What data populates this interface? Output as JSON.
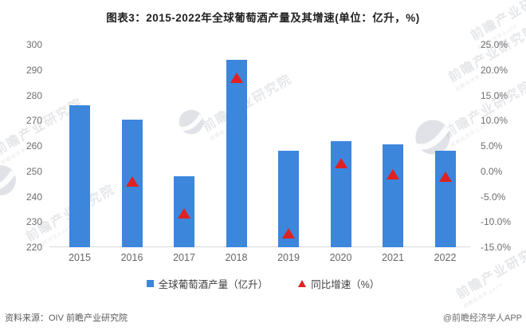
{
  "title": "图表3：2015-2022年全球葡萄酒产量及其增速(单位：亿升，%)",
  "chart_data": {
    "type": "bar",
    "title": "图表3：2015-2022年全球葡萄酒产量及其增速(单位：亿升，%)",
    "categories": [
      "2015",
      "2016",
      "2017",
      "2018",
      "2019",
      "2020",
      "2021",
      "2022"
    ],
    "series": [
      {
        "name": "全球葡萄酒产量（亿升）",
        "type": "bar",
        "axis": "left",
        "color": "#3c86dc",
        "values": [
          276,
          270.5,
          248,
          294,
          258,
          262,
          260.5,
          258
        ]
      },
      {
        "name": "同比增速（%）",
        "type": "scatter",
        "marker": "triangle",
        "axis": "right",
        "color": "#e02121",
        "values": [
          null,
          -2.0,
          -8.3,
          18.5,
          -12.2,
          1.6,
          -0.6,
          -1.0
        ]
      }
    ],
    "left_axis": {
      "label": "亿升",
      "min": 220,
      "max": 300,
      "step": 10,
      "ticks": [
        "300",
        "290",
        "280",
        "270",
        "260",
        "250",
        "240",
        "230",
        "220"
      ]
    },
    "right_axis": {
      "label": "%",
      "min": -15,
      "max": 25,
      "step": 5,
      "ticks": [
        "25.0%",
        "20.0%",
        "15.0%",
        "10.0%",
        "5.0%",
        "0.0%",
        "-5.0%",
        "-10.0%",
        "-15.0%"
      ]
    },
    "grid": false,
    "legend_position": "bottom"
  },
  "legend": {
    "production_label": "全球葡萄酒产量（亿升）",
    "growth_label": "同比增速（%）"
  },
  "footer": {
    "source": "资料来源：OIV 前瞻产业研究院",
    "credit": "@前瞻经济学人APP"
  },
  "watermark": {
    "text": "前瞻产业研究院",
    "subtext": "前瞻经济学人APP",
    "logo_name": "qianzhan-logo"
  },
  "colors": {
    "bar": "#3c86dc",
    "marker": "#e02121",
    "axis_text": "#6e6e6e",
    "baseline": "#d9d9d9",
    "title_text": "#1f1f1f"
  }
}
